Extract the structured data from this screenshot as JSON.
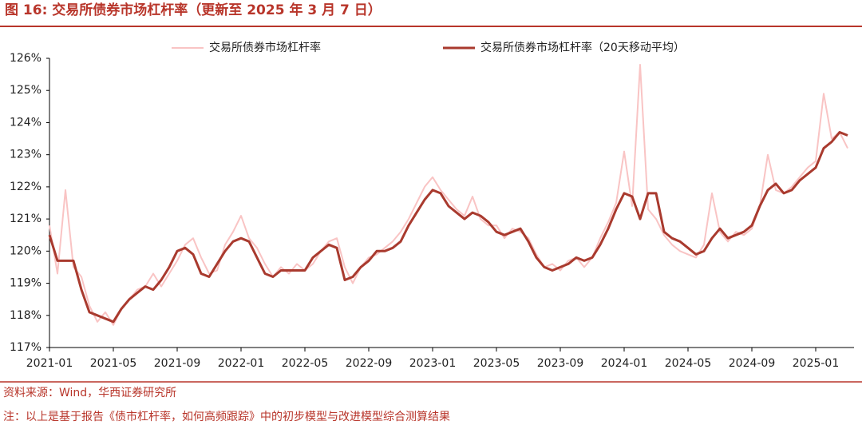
{
  "chart_data": {
    "type": "line",
    "title": "图 16:  交易所债券市场杠杆率（更新至 2025 年 3 月 7 日）",
    "source": "资料来源：Wind，华西证券研究所",
    "note": "注：以上是基于报告《债市杠杆率，如何高频跟踪》中的初步模型与改进模型综合测算结果",
    "categories": [
      "2021-01",
      null,
      null,
      null,
      null,
      null,
      null,
      null,
      "2021-05",
      null,
      null,
      null,
      null,
      null,
      null,
      null,
      "2021-09",
      null,
      null,
      null,
      null,
      null,
      null,
      null,
      "2022-01",
      null,
      null,
      null,
      null,
      null,
      null,
      null,
      "2022-05",
      null,
      null,
      null,
      null,
      null,
      null,
      null,
      "2022-09",
      null,
      null,
      null,
      null,
      null,
      null,
      null,
      "2023-01",
      null,
      null,
      null,
      null,
      null,
      null,
      null,
      "2023-05",
      null,
      null,
      null,
      null,
      null,
      null,
      null,
      "2023-09",
      null,
      null,
      null,
      null,
      null,
      null,
      null,
      "2024-01",
      null,
      null,
      null,
      null,
      null,
      null,
      null,
      "2024-05",
      null,
      null,
      null,
      null,
      null,
      null,
      null,
      "2024-09",
      null,
      null,
      null,
      null,
      null,
      null,
      null,
      "2025-01",
      null,
      null,
      null,
      null
    ],
    "series": [
      {
        "name": "交易所债券市场杠杆率",
        "color": "#f9c4c4",
        "width": 2,
        "values": [
          120.8,
          119.3,
          121.9,
          119.5,
          119.2,
          118.3,
          117.8,
          118.1,
          117.7,
          118.2,
          118.5,
          118.8,
          118.9,
          119.3,
          118.9,
          119.3,
          119.7,
          120.2,
          120.4,
          119.8,
          119.3,
          119.4,
          120.2,
          120.6,
          121.1,
          120.4,
          120.1,
          119.6,
          119.2,
          119.5,
          119.3,
          119.6,
          119.4,
          119.6,
          120.0,
          120.3,
          120.4,
          119.5,
          119.0,
          119.5,
          119.8,
          119.9,
          120.1,
          120.3,
          120.6,
          121.0,
          121.5,
          122.0,
          122.3,
          121.9,
          121.6,
          121.3,
          121.1,
          121.7,
          121.0,
          120.8,
          120.8,
          120.4,
          120.7,
          120.6,
          120.4,
          119.9,
          119.5,
          119.6,
          119.4,
          119.7,
          119.8,
          119.5,
          119.8,
          120.4,
          120.9,
          121.5,
          123.1,
          121.4,
          125.8,
          121.3,
          121.0,
          120.5,
          120.2,
          120.0,
          119.9,
          119.8,
          120.2,
          121.8,
          120.6,
          120.3,
          120.6,
          120.5,
          120.7,
          121.4,
          123.0,
          121.9,
          121.8,
          122.0,
          122.3,
          122.6,
          122.8,
          124.9,
          123.5,
          123.7,
          123.2
        ]
      },
      {
        "name": "交易所债券市场杠杆率（20天移动平均）",
        "color": "#a93a2e",
        "width": 3,
        "values": [
          120.5,
          119.7,
          119.7,
          119.7,
          118.8,
          118.1,
          118.0,
          117.9,
          117.8,
          118.2,
          118.5,
          118.7,
          118.9,
          118.8,
          119.1,
          119.5,
          120.0,
          120.1,
          119.9,
          119.3,
          119.2,
          119.6,
          120.0,
          120.3,
          120.4,
          120.3,
          119.8,
          119.3,
          119.2,
          119.4,
          119.4,
          119.4,
          119.4,
          119.8,
          120.0,
          120.2,
          120.1,
          119.1,
          119.2,
          119.5,
          119.7,
          120.0,
          120.0,
          120.1,
          120.3,
          120.8,
          121.2,
          121.6,
          121.9,
          121.8,
          121.4,
          121.2,
          121.0,
          121.2,
          121.1,
          120.9,
          120.6,
          120.5,
          120.6,
          120.7,
          120.3,
          119.8,
          119.5,
          119.4,
          119.5,
          119.6,
          119.8,
          119.7,
          119.8,
          120.2,
          120.7,
          121.3,
          121.8,
          121.7,
          121.0,
          121.8,
          121.8,
          120.6,
          120.4,
          120.3,
          120.1,
          119.9,
          120.0,
          120.4,
          120.7,
          120.4,
          120.5,
          120.6,
          120.8,
          121.4,
          121.9,
          122.1,
          121.8,
          121.9,
          122.2,
          122.4,
          122.6,
          123.2,
          123.4,
          123.7,
          123.6
        ]
      }
    ],
    "ylim": [
      117,
      126
    ],
    "yticks": [
      {
        "value": 117,
        "label": "117%"
      },
      {
        "value": 118,
        "label": "118%"
      },
      {
        "value": 119,
        "label": "119%"
      },
      {
        "value": 120,
        "label": "120%"
      },
      {
        "value": 121,
        "label": "121%"
      },
      {
        "value": 122,
        "label": "122%"
      },
      {
        "value": 123,
        "label": "123%"
      },
      {
        "value": 124,
        "label": "124%"
      },
      {
        "value": 125,
        "label": "125%"
      },
      {
        "value": 126,
        "label": "126%"
      }
    ],
    "grid": false,
    "legend": "top"
  }
}
